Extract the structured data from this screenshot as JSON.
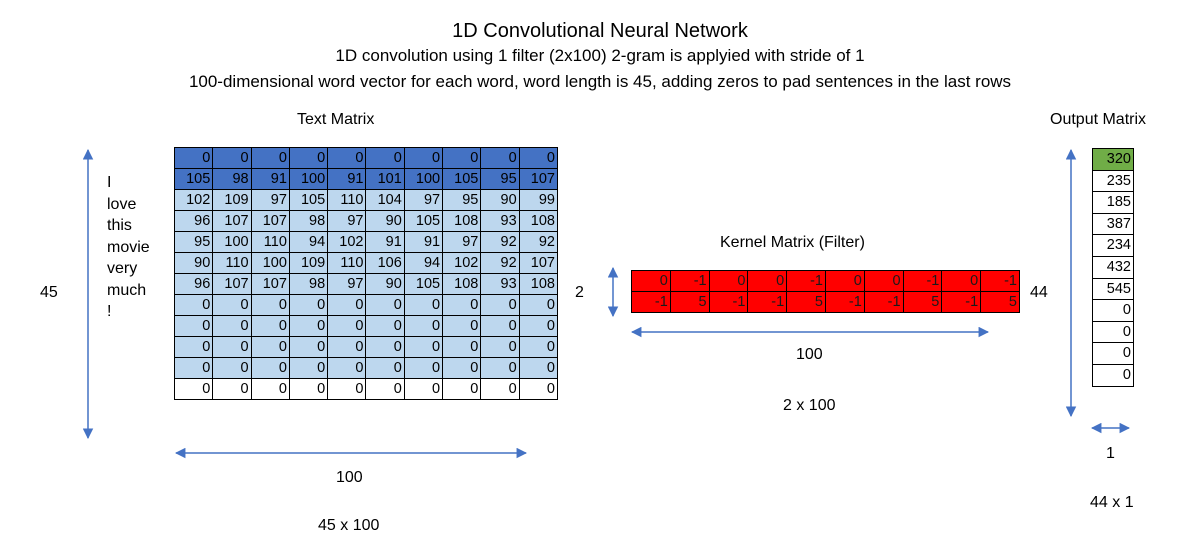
{
  "title": "1D Convolutional Neural Network",
  "subtitle1": "1D convolution using 1 filter (2x100) 2-gram is applyied with stride of 1",
  "subtitle2": "100-dimensional word vector for each word, word length is 45, adding zeros to pad sentences in the last rows",
  "text_matrix": {
    "label": "Text Matrix",
    "rows": [
      [
        0,
        0,
        0,
        0,
        0,
        0,
        0,
        0,
        0,
        0
      ],
      [
        105,
        98,
        91,
        100,
        91,
        101,
        100,
        105,
        95,
        107
      ],
      [
        102,
        109,
        97,
        105,
        110,
        104,
        97,
        95,
        90,
        99
      ],
      [
        96,
        107,
        107,
        98,
        97,
        90,
        105,
        108,
        93,
        108
      ],
      [
        95,
        100,
        110,
        94,
        102,
        91,
        91,
        97,
        92,
        92
      ],
      [
        90,
        110,
        100,
        109,
        110,
        106,
        94,
        102,
        92,
        107
      ],
      [
        96,
        107,
        107,
        98,
        97,
        90,
        105,
        108,
        93,
        108
      ],
      [
        0,
        0,
        0,
        0,
        0,
        0,
        0,
        0,
        0,
        0
      ],
      [
        0,
        0,
        0,
        0,
        0,
        0,
        0,
        0,
        0,
        0
      ],
      [
        0,
        0,
        0,
        0,
        0,
        0,
        0,
        0,
        0,
        0
      ],
      [
        0,
        0,
        0,
        0,
        0,
        0,
        0,
        0,
        0,
        0
      ],
      [
        0,
        0,
        0,
        0,
        0,
        0,
        0,
        0,
        0,
        0
      ]
    ],
    "row_styles": [
      "dark",
      "dark",
      "light",
      "light",
      "light",
      "light",
      "light",
      "light",
      "light",
      "light",
      "light",
      "white"
    ],
    "words": [
      "I",
      "love",
      "this",
      "movie",
      "very",
      "much",
      "!"
    ],
    "height_label": "45",
    "width_label": "100",
    "dims_label": "45 x 100"
  },
  "kernel_matrix": {
    "label": "Kernel Matrix (Filter)",
    "rows": [
      [
        0,
        -1,
        0,
        0,
        -1,
        0,
        0,
        -1,
        0,
        -1
      ],
      [
        -1,
        5,
        -1,
        -1,
        5,
        -1,
        -1,
        5,
        -1,
        5
      ]
    ],
    "height_label": "2",
    "width_label": "100",
    "dims_label": "2 x 100"
  },
  "output_matrix": {
    "label": "Output Matrix",
    "values": [
      320,
      235,
      185,
      387,
      234,
      432,
      545,
      0,
      0,
      0,
      0
    ],
    "height_label": "44",
    "width_label": "1",
    "dims_label": "44 x 1"
  },
  "colors": {
    "text_dark": "#4472c4",
    "text_light": "#bdd7ee",
    "kernel": "#ff0000",
    "output_highlight": "#70ad47",
    "arrow": "#4472c4"
  }
}
